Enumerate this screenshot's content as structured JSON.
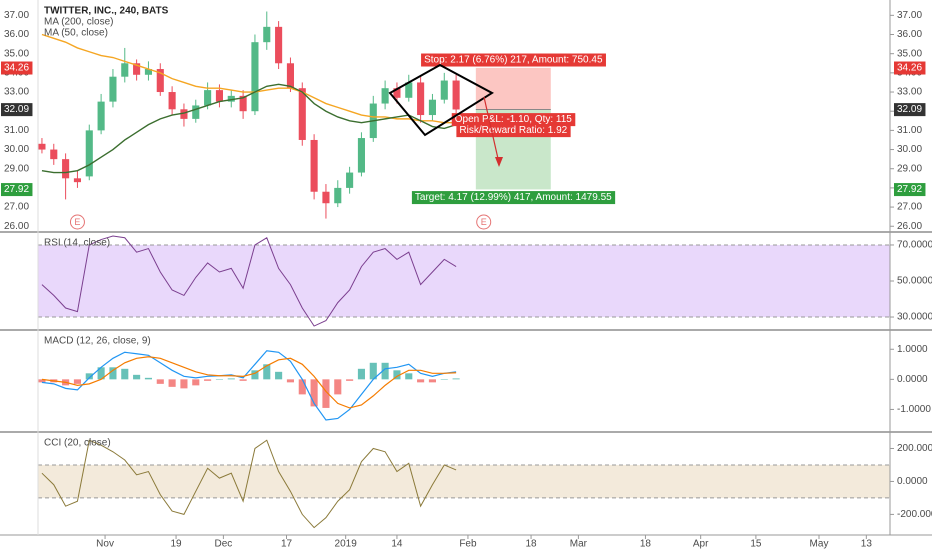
{
  "chart_data": [
    {
      "type": "candlestick",
      "title": "TWITTER, INC., 240, BATS",
      "x": [
        1,
        4,
        7,
        10,
        13,
        16,
        19,
        22,
        25,
        28,
        31,
        34,
        37,
        40,
        43,
        46,
        49,
        52,
        55,
        58,
        61,
        64,
        67,
        70,
        73,
        76,
        79,
        82,
        85,
        88,
        91,
        94,
        97,
        100,
        103,
        106
      ],
      "open": [
        30.3,
        30.0,
        29.5,
        28.5,
        28.6,
        31.0,
        32.5,
        33.8,
        34.5,
        33.9,
        34.2,
        33.0,
        32.1,
        31.6,
        32.3,
        33.1,
        32.5,
        32.8,
        32.0,
        35.6,
        36.4,
        34.5,
        33.2,
        30.5,
        27.8,
        27.2,
        28.0,
        28.8,
        30.6,
        32.4,
        33.2,
        32.7,
        33.5,
        31.8,
        32.6,
        33.6
      ],
      "high": [
        30.6,
        30.3,
        29.8,
        28.9,
        31.3,
        32.9,
        34.2,
        35.3,
        34.7,
        34.6,
        34.5,
        33.3,
        32.4,
        32.6,
        33.5,
        33.4,
        33.1,
        33.1,
        36.0,
        37.2,
        36.7,
        34.8,
        33.5,
        30.8,
        28.2,
        28.4,
        29.1,
        30.9,
        32.8,
        33.6,
        33.5,
        33.9,
        33.8,
        32.9,
        34.0,
        33.9
      ],
      "low": [
        29.8,
        29.2,
        27.4,
        28.0,
        28.4,
        30.8,
        32.2,
        33.5,
        33.6,
        33.6,
        32.8,
        31.8,
        31.2,
        31.4,
        32.1,
        32.2,
        32.2,
        31.6,
        31.8,
        35.2,
        34.2,
        33.0,
        30.2,
        27.4,
        26.4,
        27.0,
        27.7,
        28.6,
        30.4,
        32.1,
        32.4,
        32.5,
        31.4,
        31.5,
        32.4,
        31.9
      ],
      "close": [
        30.0,
        29.5,
        28.5,
        28.3,
        31.0,
        32.5,
        33.8,
        34.5,
        33.9,
        34.2,
        33.0,
        32.1,
        31.6,
        32.3,
        33.1,
        32.5,
        32.8,
        32.0,
        35.6,
        36.4,
        34.5,
        33.2,
        30.5,
        27.8,
        27.2,
        28.0,
        28.8,
        30.6,
        32.4,
        33.2,
        32.7,
        33.5,
        31.8,
        32.6,
        33.6,
        32.09
      ],
      "up_color": "#53b987",
      "down_color": "#eb4d5c",
      "series": [
        {
          "name": "MA (200, close)",
          "color": "#f5a623",
          "values": [
            36.0,
            35.8,
            35.6,
            35.3,
            35.1,
            34.9,
            34.8,
            34.6,
            34.4,
            34.2,
            34.0,
            33.7,
            33.5,
            33.3,
            33.2,
            33.2,
            33.1,
            33.0,
            33.0,
            33.1,
            33.2,
            33.2,
            33.0,
            32.7,
            32.4,
            32.2,
            32.0,
            31.8,
            31.7,
            31.7,
            31.6,
            31.6,
            31.5,
            31.5,
            31.4,
            31.4
          ]
        },
        {
          "name": "MA (50, close)",
          "color": "#3b6e2f",
          "values": [
            28.9,
            28.8,
            28.8,
            28.9,
            29.2,
            29.6,
            30.0,
            30.5,
            30.9,
            31.3,
            31.6,
            31.8,
            31.9,
            32.1,
            32.3,
            32.5,
            32.6,
            32.7,
            33.0,
            33.3,
            33.4,
            33.3,
            33.0,
            32.4,
            32.0,
            31.7,
            31.5,
            31.4,
            31.5,
            31.6,
            31.7,
            31.8,
            31.5,
            31.2,
            31.1,
            31.3
          ]
        }
      ],
      "xlim": [
        0,
        216
      ],
      "ylim": [
        25.7,
        37.8
      ],
      "yticks": [
        {
          "value": 26,
          "label": "26.00"
        },
        {
          "value": 27,
          "label": "27.00"
        },
        {
          "value": 28,
          "label": "28.00"
        },
        {
          "value": 29,
          "label": "29.00"
        },
        {
          "value": 30,
          "label": "30.00"
        },
        {
          "value": 31,
          "label": "31.00"
        },
        {
          "value": 32,
          "label": "32.00"
        },
        {
          "value": 33,
          "label": "33.00"
        },
        {
          "value": 34,
          "label": "34.00"
        },
        {
          "value": 35,
          "label": "35.00"
        },
        {
          "value": 36,
          "label": "36.00"
        },
        {
          "value": 37,
          "label": "37.00"
        }
      ],
      "left_axis": true,
      "markers": [
        {
          "x": 10,
          "label": "E"
        },
        {
          "x": 113,
          "label": "E"
        }
      ],
      "position": {
        "x": [
          111,
          130
        ],
        "stop": 34.26,
        "entry": 32.09,
        "target": 27.92,
        "stop_label": "Stop: 2.17 (6.76%) 217, Amount: 750.45",
        "pnl_label": "Open P&L: -1.10, Qty: 115",
        "rr_label": "Risk/Reward Ratio: 1.92",
        "target_label": "Target: 4.17 (12.99%) 417, Amount: 1479.55"
      }
    },
    {
      "type": "line",
      "title": "RSI (14, close)",
      "color": "#7b3f8f",
      "x": [
        1,
        4,
        7,
        10,
        13,
        16,
        19,
        22,
        25,
        28,
        31,
        34,
        37,
        40,
        43,
        46,
        49,
        52,
        55,
        58,
        61,
        64,
        67,
        70,
        73,
        76,
        79,
        82,
        85,
        88,
        91,
        94,
        97,
        100,
        103,
        106
      ],
      "values": [
        48,
        42,
        35,
        33,
        70,
        73,
        75,
        74,
        66,
        68,
        55,
        45,
        42,
        52,
        60,
        55,
        57,
        46,
        70,
        74,
        57,
        48,
        35,
        25,
        28,
        38,
        45,
        58,
        66,
        68,
        62,
        66,
        48,
        55,
        62,
        58
      ],
      "band": [
        30,
        70
      ],
      "band_color": "#e9d8fb",
      "xlim": [
        0,
        216
      ],
      "ylim": [
        22.8,
        77.2
      ],
      "yticks": [
        {
          "value": 30,
          "label": "30.0000"
        },
        {
          "value": 50,
          "label": "50.0000"
        },
        {
          "value": 70,
          "label": "70.0000"
        }
      ]
    },
    {
      "type": "macd",
      "title": "MACD (12, 26, close, 9)",
      "x": [
        1,
        4,
        7,
        10,
        13,
        16,
        19,
        22,
        25,
        28,
        31,
        34,
        37,
        40,
        43,
        46,
        49,
        52,
        55,
        58,
        61,
        64,
        67,
        70,
        73,
        76,
        79,
        82,
        85,
        88,
        91,
        94,
        97,
        100,
        103,
        106
      ],
      "histogram": [
        -0.1,
        -0.1,
        -0.2,
        -0.15,
        0.2,
        0.4,
        0.4,
        0.35,
        0.15,
        0.05,
        -0.15,
        -0.25,
        -0.3,
        -0.2,
        -0.05,
        0.0,
        0.03,
        -0.05,
        0.3,
        0.5,
        0.25,
        -0.1,
        -0.5,
        -0.9,
        -0.95,
        -0.5,
        -0.05,
        0.35,
        0.55,
        0.55,
        0.3,
        0.2,
        -0.1,
        -0.1,
        0.0,
        0.03
      ],
      "positive_color": "#26a69a",
      "negative_color": "#ef5350",
      "series": [
        {
          "color": "#2196f3",
          "values": [
            -0.1,
            -0.15,
            -0.3,
            -0.35,
            0.05,
            0.4,
            0.7,
            0.9,
            0.85,
            0.8,
            0.55,
            0.3,
            0.1,
            0.05,
            0.1,
            0.12,
            0.15,
            0.05,
            0.5,
            0.95,
            0.9,
            0.6,
            0.0,
            -0.8,
            -1.35,
            -1.3,
            -1.0,
            -0.5,
            0.0,
            0.35,
            0.4,
            0.5,
            0.2,
            0.1,
            0.2,
            0.25
          ]
        },
        {
          "color": "#f57c00",
          "values": [
            0.0,
            -0.05,
            -0.1,
            -0.2,
            -0.15,
            0.0,
            0.3,
            0.55,
            0.7,
            0.75,
            0.7,
            0.55,
            0.4,
            0.25,
            0.15,
            0.12,
            0.12,
            0.1,
            0.2,
            0.45,
            0.65,
            0.7,
            0.5,
            0.1,
            -0.4,
            -0.8,
            -0.95,
            -0.85,
            -0.55,
            -0.2,
            0.1,
            0.3,
            0.3,
            0.2,
            0.2,
            0.22
          ]
        }
      ],
      "xlim": [
        0,
        216
      ],
      "ylim": [
        -1.75,
        1.64
      ],
      "yticks": [
        {
          "value": -1,
          "label": "-1.0000"
        },
        {
          "value": 0,
          "label": "0.0000"
        },
        {
          "value": 1,
          "label": "1.0000"
        }
      ]
    },
    {
      "type": "line",
      "title": "CCI (20, close)",
      "color": "#8b7a3a",
      "x": [
        1,
        4,
        7,
        10,
        13,
        16,
        19,
        22,
        25,
        28,
        31,
        34,
        37,
        40,
        43,
        46,
        49,
        52,
        55,
        58,
        61,
        64,
        67,
        70,
        73,
        76,
        79,
        82,
        85,
        88,
        91,
        94,
        97,
        100,
        103,
        106
      ],
      "values": [
        50,
        -20,
        -150,
        -120,
        250,
        220,
        180,
        130,
        40,
        60,
        -80,
        -180,
        -200,
        -60,
        80,
        20,
        50,
        -120,
        200,
        250,
        60,
        -60,
        -200,
        -280,
        -220,
        -120,
        -50,
        120,
        200,
        180,
        60,
        110,
        -150,
        -20,
        100,
        70
      ],
      "band": [
        -100,
        100
      ],
      "band_color": "#f3eadb",
      "xlim": [
        0,
        216
      ],
      "ylim": [
        -325,
        300
      ],
      "yticks": [
        {
          "value": -200,
          "label": "-200.0000"
        },
        {
          "value": 0,
          "label": "0.0000"
        },
        {
          "value": 200,
          "label": "200.0000"
        }
      ],
      "xticks": [
        {
          "value": 17,
          "label": "Nov"
        },
        {
          "value": 35,
          "label": "19"
        },
        {
          "value": 47,
          "label": "Dec"
        },
        {
          "value": 63,
          "label": "17"
        },
        {
          "value": 78,
          "label": "2019"
        },
        {
          "value": 91,
          "label": "14"
        },
        {
          "value": 109,
          "label": "Feb"
        },
        {
          "value": 125,
          "label": "18"
        },
        {
          "value": 137,
          "label": "Mar"
        },
        {
          "value": 154,
          "label": "18"
        },
        {
          "value": 168,
          "label": "Apr"
        },
        {
          "value": 182,
          "label": "15"
        },
        {
          "value": 198,
          "label": "May"
        },
        {
          "value": 210,
          "label": "13"
        }
      ]
    }
  ]
}
